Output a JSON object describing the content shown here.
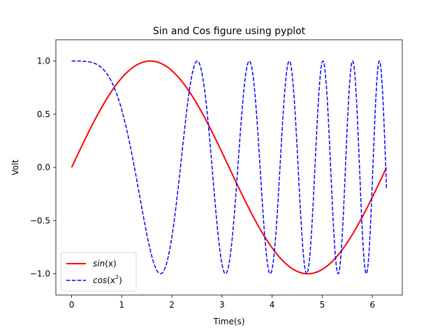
{
  "chart_data": {
    "type": "line",
    "title": "Sin and Cos figure using pyplot",
    "xlabel": "Time(s)",
    "ylabel": "Volt",
    "xlim": [
      -0.314,
      6.597
    ],
    "ylim": [
      -1.2,
      1.2
    ],
    "x_ticks": [
      0,
      1,
      2,
      3,
      4,
      5,
      6
    ],
    "x_tick_labels": [
      "0",
      "1",
      "2",
      "3",
      "4",
      "5",
      "6"
    ],
    "y_ticks": [
      -1.0,
      -0.5,
      0.0,
      0.5,
      1.0
    ],
    "y_tick_labels": [
      "−1.0",
      "−0.5",
      "0.0",
      "0.5",
      "1.0"
    ],
    "grid": false,
    "legend_position": "lower-left",
    "series": [
      {
        "name_prefix": "sin",
        "name_suffix": "(x)",
        "name_sup": "",
        "color": "#ff0000",
        "style": "solid",
        "function": "sin(x)",
        "x_range": [
          0,
          6.283
        ]
      },
      {
        "name_prefix": "cos",
        "name_suffix": ")",
        "name_mid": "(x",
        "name_sup": "2",
        "color": "#0000ff",
        "style": "dashed",
        "function": "cos(x^2)",
        "x_range": [
          0,
          6.283
        ]
      }
    ]
  }
}
